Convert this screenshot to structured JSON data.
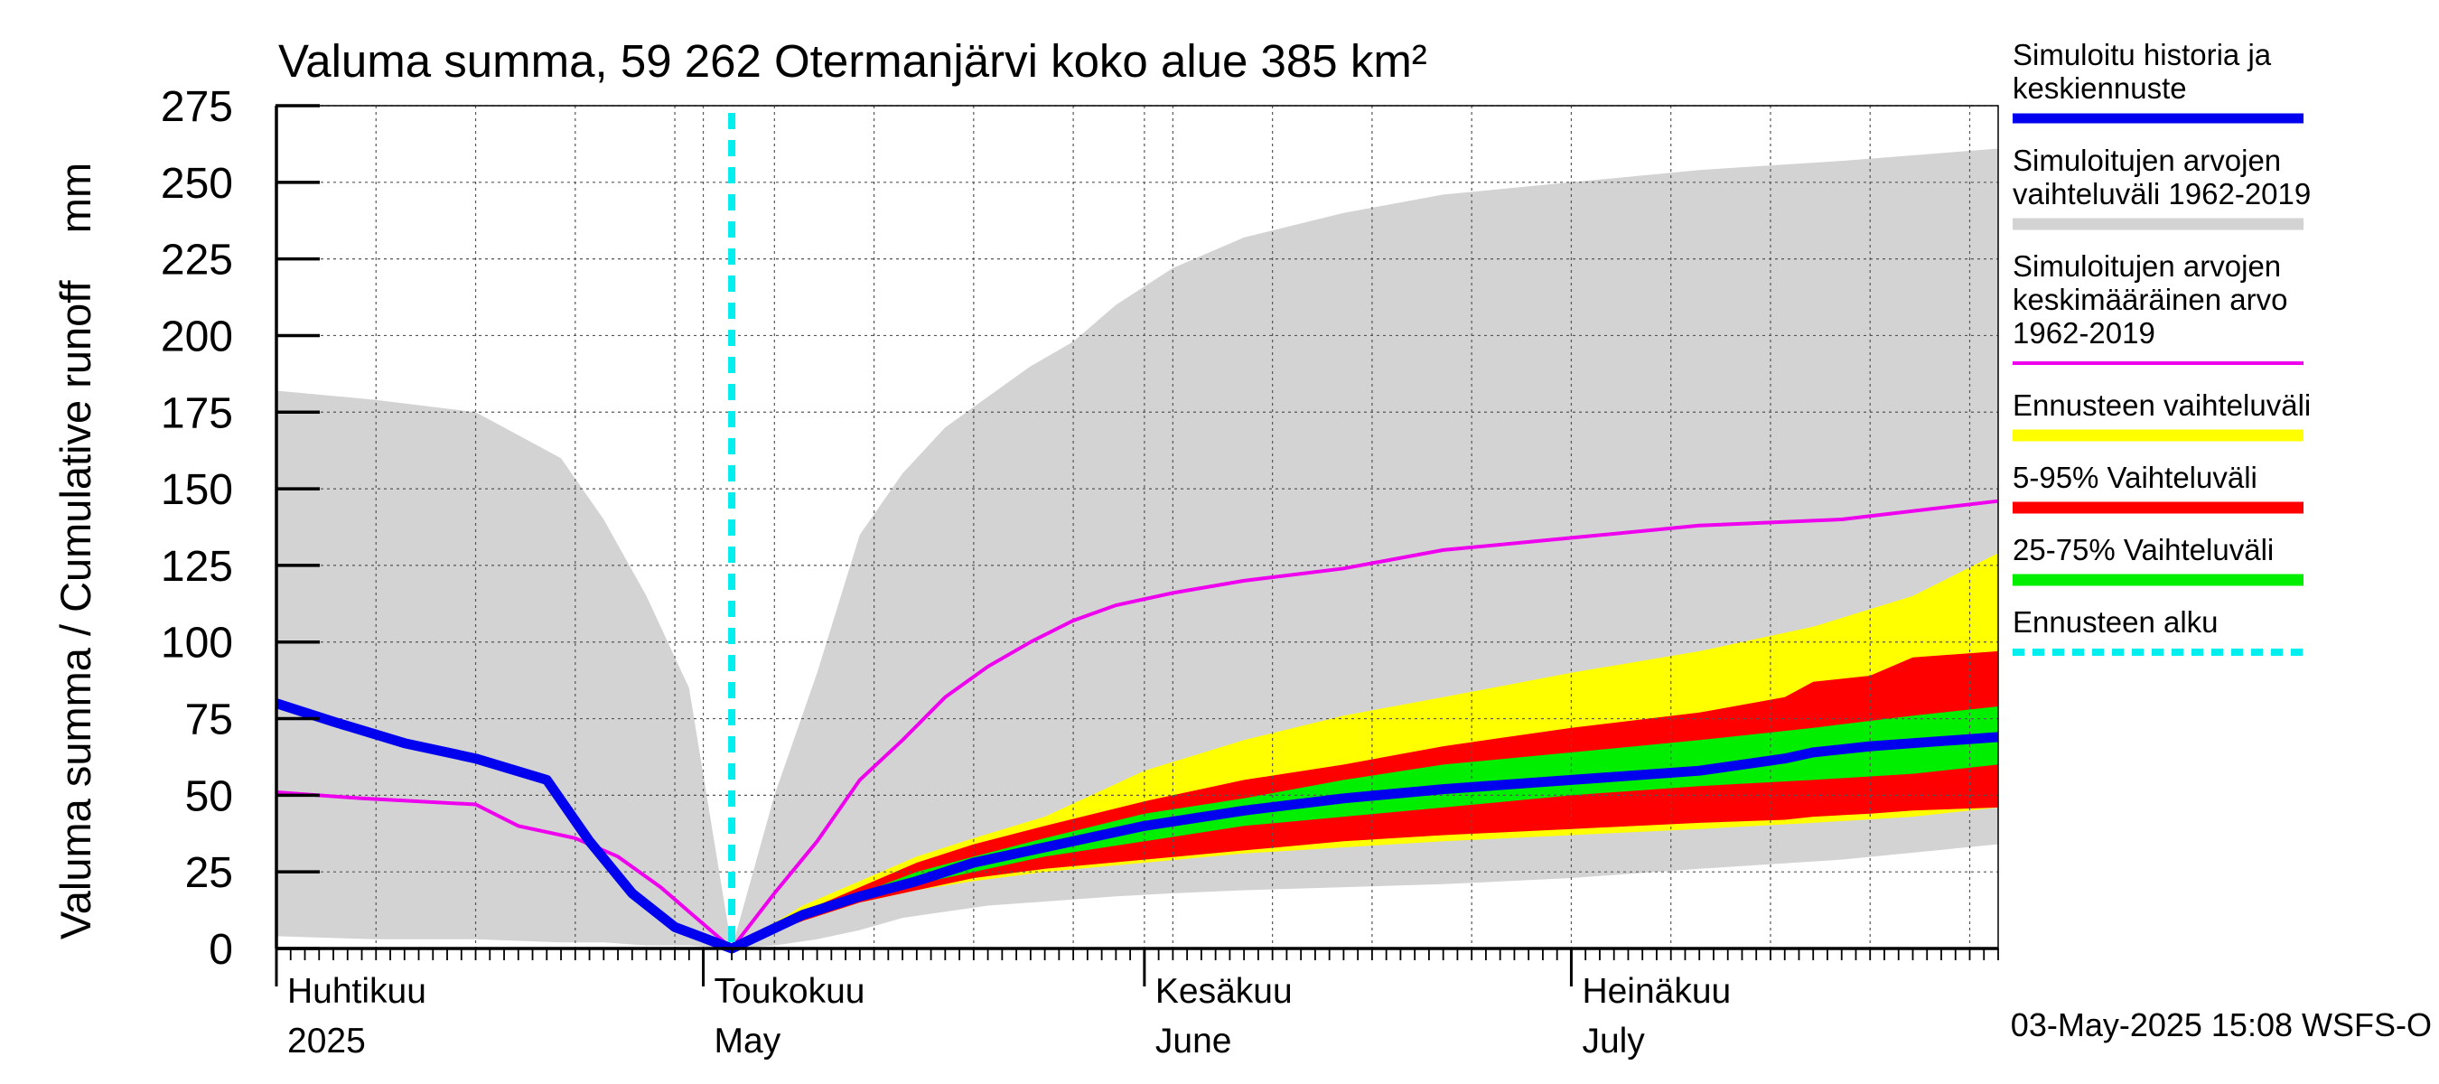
{
  "chart_data": {
    "type": "area",
    "title": "Valuma summa, 59 262 Otermanjärvi koko alue 385 km²",
    "ylabel": "Valuma summa / Cumulative runoff    mm",
    "ylim": [
      0,
      275
    ],
    "yticks": [
      0,
      25,
      50,
      75,
      100,
      125,
      150,
      175,
      200,
      225,
      250,
      275
    ],
    "xlim": [
      "2025-04-01",
      "2025-07-31"
    ],
    "month_labels": [
      {
        "date": "2025-04-01",
        "fi": "Huhtikuu",
        "en": "2025"
      },
      {
        "date": "2025-05-01",
        "fi": "Toukokuu",
        "en": "May"
      },
      {
        "date": "2025-06-01",
        "fi": "Kesäkuu",
        "en": "June"
      },
      {
        "date": "2025-07-01",
        "fi": "Heinäkuu",
        "en": "July"
      }
    ],
    "grid": true,
    "forecast_start": "2025-05-03",
    "footer": "03-May-2025 15:08 WSFS-O",
    "legend": {
      "placement": "right",
      "items": [
        {
          "id": "sim",
          "text": "Simuloitu historia ja\nkeskiennuste",
          "color": "#0000ee",
          "style": "line"
        },
        {
          "id": "range",
          "text": "Simuloitujen arvojen\nvaihteluväli 1962-2019",
          "color": "#d3d3d3",
          "style": "band"
        },
        {
          "id": "mean",
          "text": "Simuloitujen arvojen\nkeskimääräinen arvo\n   1962-2019",
          "color": "#ee00ee",
          "style": "thin"
        },
        {
          "id": "fc_range",
          "text": "Ennusteen vaihteluväli",
          "color": "#ffff00",
          "style": "band"
        },
        {
          "id": "p5_95",
          "text": "5-95% Vaihteluväli",
          "color": "#ff0000",
          "style": "band"
        },
        {
          "id": "p25_75",
          "text": "25-75% Vaihteluväli",
          "color": "#00ee00",
          "style": "band"
        },
        {
          "id": "fc_start",
          "text": "Ennusteen alku",
          "color": "#00eeee",
          "style": "dashed"
        }
      ]
    },
    "series": {
      "hist_range": {
        "color": "#d3d3d3",
        "x": [
          "2025-04-01",
          "2025-04-08",
          "2025-04-15",
          "2025-04-21",
          "2025-04-24",
          "2025-04-27",
          "2025-04-30",
          "2025-05-03",
          "2025-05-06",
          "2025-05-09",
          "2025-05-12",
          "2025-05-15",
          "2025-05-18",
          "2025-05-21",
          "2025-05-24",
          "2025-05-27",
          "2025-05-30",
          "2025-06-03",
          "2025-06-08",
          "2025-06-15",
          "2025-06-22",
          "2025-07-01",
          "2025-07-10",
          "2025-07-20",
          "2025-07-31"
        ],
        "upper": [
          182,
          179,
          175,
          160,
          140,
          115,
          85,
          0,
          50,
          90,
          135,
          155,
          170,
          180,
          190,
          198,
          210,
          222,
          232,
          240,
          246,
          250,
          254,
          257,
          261
        ],
        "lower": [
          4,
          3,
          3,
          2,
          2,
          1,
          1,
          0,
          1,
          3,
          6,
          10,
          12,
          14,
          15,
          16,
          17,
          18,
          19,
          20,
          21,
          23,
          26,
          29,
          34
        ]
      },
      "forecast_range": {
        "color": "#ffff00",
        "x": [
          "2025-05-03",
          "2025-05-08",
          "2025-05-12",
          "2025-05-16",
          "2025-05-20",
          "2025-05-25",
          "2025-06-01",
          "2025-06-08",
          "2025-06-15",
          "2025-06-22",
          "2025-07-01",
          "2025-07-10",
          "2025-07-18",
          "2025-07-25",
          "2025-07-31"
        ],
        "upper": [
          0,
          14,
          22,
          30,
          36,
          43,
          58,
          68,
          76,
          82,
          90,
          97,
          105,
          115,
          129
        ],
        "lower": [
          0,
          9,
          15,
          19,
          22,
          25,
          28,
          31,
          33,
          35,
          37,
          39,
          41,
          43,
          46
        ]
      },
      "p5_95": {
        "color": "#ff0000",
        "x": [
          "2025-05-03",
          "2025-05-08",
          "2025-05-12",
          "2025-05-16",
          "2025-05-20",
          "2025-05-25",
          "2025-06-01",
          "2025-06-08",
          "2025-06-15",
          "2025-06-22",
          "2025-07-01",
          "2025-07-10",
          "2025-07-16",
          "2025-07-18",
          "2025-07-22",
          "2025-07-25",
          "2025-07-31"
        ],
        "upper": [
          0,
          12,
          20,
          28,
          34,
          40,
          48,
          55,
          60,
          66,
          72,
          77,
          82,
          87,
          89,
          95,
          97
        ],
        "lower": [
          0,
          9,
          15,
          19,
          23,
          26,
          29,
          32,
          35,
          37,
          39,
          41,
          42,
          43,
          44,
          45,
          46
        ]
      },
      "p25_75": {
        "color": "#00ee00",
        "x": [
          "2025-05-03",
          "2025-05-08",
          "2025-05-12",
          "2025-05-16",
          "2025-05-20",
          "2025-05-25",
          "2025-06-01",
          "2025-06-08",
          "2025-06-15",
          "2025-06-22",
          "2025-07-01",
          "2025-07-10",
          "2025-07-18",
          "2025-07-25",
          "2025-07-31"
        ],
        "upper": [
          0,
          11,
          18,
          25,
          30,
          36,
          44,
          49,
          55,
          60,
          64,
          68,
          72,
          76,
          79
        ],
        "lower": [
          0,
          10,
          16,
          21,
          25,
          30,
          35,
          40,
          43,
          46,
          50,
          53,
          55,
          57,
          60
        ]
      },
      "sim_mean": {
        "color": "#0000ee",
        "x": [
          "2025-04-01",
          "2025-04-05",
          "2025-04-10",
          "2025-04-15",
          "2025-04-20",
          "2025-04-23",
          "2025-04-26",
          "2025-04-29",
          "2025-05-03",
          "2025-05-08",
          "2025-05-12",
          "2025-05-16",
          "2025-05-20",
          "2025-05-25",
          "2025-06-01",
          "2025-06-08",
          "2025-06-15",
          "2025-06-22",
          "2025-07-01",
          "2025-07-10",
          "2025-07-16",
          "2025-07-18",
          "2025-07-22",
          "2025-07-25",
          "2025-07-31"
        ],
        "y": [
          80,
          74,
          67,
          62,
          55,
          35,
          18,
          7,
          0,
          11,
          17,
          22,
          28,
          33,
          40,
          45,
          49,
          52,
          55,
          58,
          62,
          64,
          66,
          67,
          69
        ]
      },
      "hist_mean": {
        "color": "#ee00ee",
        "x": [
          "2025-04-01",
          "2025-04-07",
          "2025-04-15",
          "2025-04-18",
          "2025-04-22",
          "2025-04-25",
          "2025-04-28",
          "2025-05-01",
          "2025-05-03",
          "2025-05-06",
          "2025-05-09",
          "2025-05-12",
          "2025-05-15",
          "2025-05-18",
          "2025-05-21",
          "2025-05-24",
          "2025-05-27",
          "2025-05-30",
          "2025-06-03",
          "2025-06-08",
          "2025-06-15",
          "2025-06-22",
          "2025-07-01",
          "2025-07-10",
          "2025-07-20",
          "2025-07-31"
        ],
        "y": [
          51,
          49,
          47,
          40,
          36,
          30,
          20,
          8,
          0,
          18,
          35,
          55,
          68,
          82,
          92,
          100,
          107,
          112,
          116,
          120,
          124,
          130,
          134,
          138,
          140,
          146
        ]
      }
    }
  }
}
